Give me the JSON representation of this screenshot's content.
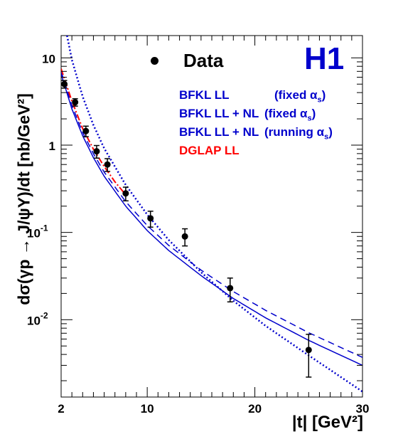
{
  "chart_data": {
    "type": "line",
    "title": "",
    "xlabel": "|t| [GeV²]",
    "ylabel": "dσ(γp → J/ψY)/dt [nb/GeV²]",
    "xlim": [
      2,
      30
    ],
    "ylim": [
      0.0013,
      18
    ],
    "yscale": "log",
    "x_ticks": [
      "2",
      "10",
      "20",
      "30"
    ],
    "y_ticks": [
      {
        "base": "10",
        "exp": "-2",
        "value": 0.01
      },
      {
        "base": "10",
        "exp": "-1",
        "value": 0.1
      },
      {
        "base": "1",
        "exp": "",
        "value": 1
      },
      {
        "base": "10",
        "exp": "",
        "value": 10
      }
    ],
    "logo": "H1",
    "data_label": "Data",
    "data_points": [
      {
        "x": 2.3,
        "y": 5.0,
        "err": 0.5
      },
      {
        "x": 3.3,
        "y": 3.1,
        "err": 0.3
      },
      {
        "x": 4.3,
        "y": 1.45,
        "err": 0.2
      },
      {
        "x": 5.3,
        "y": 0.85,
        "err": 0.14
      },
      {
        "x": 6.3,
        "y": 0.6,
        "err": 0.1
      },
      {
        "x": 8.0,
        "y": 0.28,
        "err": 0.05
      },
      {
        "x": 10.3,
        "y": 0.145,
        "err": 0.03
      },
      {
        "x": 13.5,
        "y": 0.09,
        "err": 0.02
      },
      {
        "x": 17.7,
        "y": 0.023,
        "err": 0.007
      },
      {
        "x": 25.0,
        "y": 0.0045,
        "err": 0.0023
      }
    ],
    "series": [
      {
        "name": "BFKL LL (fixed αs)",
        "color": "#0000cc",
        "dash": "solid",
        "x": [
          2,
          3,
          4,
          5,
          6,
          8,
          10,
          12,
          15,
          18,
          21,
          25,
          30
        ],
        "y": [
          6.5,
          2.6,
          1.28,
          0.72,
          0.44,
          0.2,
          0.105,
          0.062,
          0.032,
          0.0175,
          0.0105,
          0.0058,
          0.003
        ]
      },
      {
        "name": "BFKL LL + NL (fixed αs)",
        "color": "#0000cc",
        "dash": "dashed",
        "x": [
          2,
          3,
          4,
          5,
          6,
          8,
          10,
          12,
          15,
          18,
          21,
          25,
          30
        ],
        "y": [
          7.0,
          2.85,
          1.4,
          0.8,
          0.49,
          0.225,
          0.12,
          0.071,
          0.037,
          0.021,
          0.0128,
          0.0071,
          0.0037
        ]
      },
      {
        "name": "BFKL LL + NL (running αs)",
        "color": "#0000cc",
        "dash": "dotted",
        "x": [
          2.55,
          3,
          4,
          5,
          6,
          8,
          10,
          12,
          15,
          18,
          21,
          25,
          30
        ],
        "y": [
          18,
          9.5,
          3.6,
          1.7,
          0.92,
          0.35,
          0.16,
          0.082,
          0.035,
          0.0165,
          0.0085,
          0.0039,
          0.0015
        ]
      },
      {
        "name": "DGLAP LL",
        "color": "#ff0000",
        "dash": "dashdot",
        "x": [
          2,
          3,
          4,
          5,
          6,
          7,
          8
        ],
        "y": [
          7.5,
          3.2,
          1.55,
          0.9,
          0.57,
          0.38,
          0.27
        ]
      }
    ],
    "legend": {
      "rows": [
        {
          "label": "BFKL LL",
          "note": "(fixed α",
          "sub": "s",
          "close": ")",
          "color": "#0000cc"
        },
        {
          "label": "BFKL LL + NL",
          "note": "(fixed α",
          "sub": "s",
          "close": ")",
          "color": "#0000cc"
        },
        {
          "label": "BFKL LL + NL",
          "note": "(running α",
          "sub": "s",
          "close": ")",
          "color": "#0000cc"
        },
        {
          "label": "DGLAP LL",
          "note": "",
          "sub": "",
          "close": "",
          "color": "#ff0000"
        }
      ],
      "placement": "top-right"
    },
    "grid": false
  }
}
